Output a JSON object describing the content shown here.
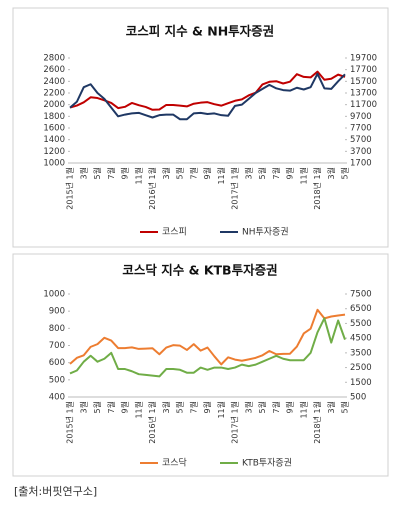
{
  "chart_data": [
    {
      "type": "line",
      "title": "코스피 지수 & NH투자증권",
      "categories": [
        "2015년 1월",
        null,
        "3월",
        null,
        "5월",
        null,
        "7월",
        null,
        "9월",
        null,
        "11월",
        null,
        "2016년 1월",
        null,
        "3월",
        null,
        "5월",
        null,
        "7월",
        null,
        "9월",
        null,
        "11월",
        null,
        "2017년 1월",
        null,
        "3월",
        null,
        "5월",
        null,
        "7월",
        null,
        "9월",
        null,
        "11월",
        null,
        "2018년 1월",
        null,
        "3월",
        null,
        "5월"
      ],
      "ylim": [
        1000,
        2800
      ],
      "yticks": [
        1000,
        1200,
        1400,
        1600,
        1800,
        2000,
        2200,
        2400,
        2600,
        2800
      ],
      "y2lim": [
        1700,
        19700
      ],
      "y2ticks": [
        1700,
        3700,
        5700,
        7700,
        9700,
        11700,
        13700,
        15700,
        17700,
        19700
      ],
      "series": [
        {
          "name": "코스피",
          "color": "#c00000",
          "values": [
            1950,
            1985,
            2040,
            2127,
            2114,
            2074,
            2030,
            1941,
            1963,
            2029,
            1991,
            1961,
            1912,
            1917,
            1995,
            1994,
            1983,
            1970,
            2016,
            2034,
            2043,
            2008,
            1983,
            2026,
            2067,
            2091,
            2160,
            2205,
            2347,
            2392,
            2402,
            2363,
            2394,
            2523,
            2476,
            2467,
            2566,
            2427,
            2445,
            2515,
            2475
          ]
        },
        {
          "name": "NH투자증권",
          "color": "#1f3864",
          "axis": "y2",
          "values": [
            11200,
            12200,
            14700,
            15200,
            13700,
            12700,
            11200,
            9700,
            10000,
            10200,
            10300,
            9900,
            9500,
            9900,
            10000,
            10000,
            9200,
            9200,
            10200,
            10300,
            10100,
            10200,
            9900,
            9800,
            11500,
            11700,
            12700,
            13700,
            14400,
            15100,
            14500,
            14200,
            14100,
            14600,
            14300,
            14700,
            17000,
            14500,
            14400,
            15700,
            16900
          ]
        }
      ]
    },
    {
      "type": "line",
      "title": "코스닥 지수 & KTB투자증권",
      "categories": [
        "2015년 1월",
        null,
        "3월",
        null,
        "5월",
        null,
        "7월",
        null,
        "9월",
        null,
        "11월",
        null,
        "2016년 1월",
        null,
        "3월",
        null,
        "5월",
        null,
        "7월",
        null,
        "9월",
        null,
        "11월",
        null,
        "2017년 1월",
        null,
        "3월",
        null,
        "5월",
        null,
        "7월",
        null,
        "9월",
        null,
        "11월",
        null,
        "2018년 1월",
        null,
        "3월",
        null,
        "5월"
      ],
      "ylim": [
        400,
        1000
      ],
      "yticks": [
        400,
        500,
        600,
        700,
        800,
        900,
        1000
      ],
      "y2lim": [
        500,
        7500
      ],
      "y2ticks": [
        500,
        1500,
        2500,
        3500,
        4500,
        5500,
        6500,
        7500
      ],
      "series": [
        {
          "name": "코스닥",
          "color": "#ed7d31",
          "values": [
            593,
            628,
            643,
            692,
            708,
            745,
            729,
            685,
            685,
            689,
            680,
            682,
            684,
            649,
            688,
            702,
            699,
            674,
            708,
            670,
            688,
            637,
            590,
            631,
            618,
            611,
            619,
            628,
            643,
            668,
            649,
            651,
            652,
            694,
            770,
            798,
            908,
            858,
            869,
            875,
            880
          ]
        },
        {
          "name": "KTB투자증권",
          "color": "#70ad47",
          "axis": "y2",
          "values": [
            2100,
            2300,
            2900,
            3300,
            2900,
            3100,
            3500,
            2400,
            2400,
            2250,
            2050,
            2000,
            1950,
            1900,
            2400,
            2400,
            2350,
            2150,
            2150,
            2500,
            2350,
            2500,
            2500,
            2400,
            2500,
            2700,
            2600,
            2700,
            2900,
            3100,
            3300,
            3100,
            3000,
            3000,
            3000,
            3500,
            4900,
            5850,
            4200,
            5700,
            4400
          ]
        }
      ]
    }
  ],
  "footer": "[출처:버핏연구소]"
}
